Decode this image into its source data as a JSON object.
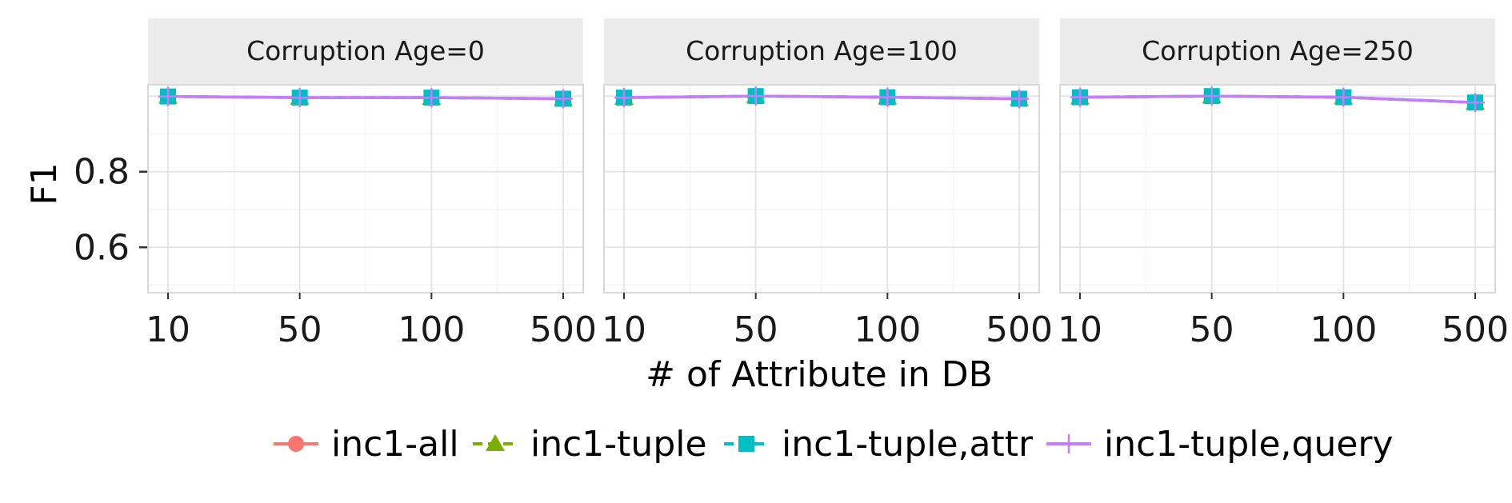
{
  "chart_data": {
    "type": "line",
    "ylabel": "F1",
    "xlabel": "# of Attribute in DB",
    "x_categories": [
      "10",
      "50",
      "100",
      "500"
    ],
    "y_ticks": [
      0.6,
      0.8
    ],
    "ylim": [
      0.48,
      1.03
    ],
    "grid": true,
    "legend_position": "bottom",
    "series_meta": [
      {
        "name": "inc1-all",
        "color": "#F8766D",
        "marker": "circle",
        "dash": "solid"
      },
      {
        "name": "inc1-tuple",
        "color": "#7CAE00",
        "marker": "triangle",
        "dash": "dashed"
      },
      {
        "name": "inc1-tuple,attr",
        "color": "#00BFC4",
        "marker": "square",
        "dash": "dashed"
      },
      {
        "name": "inc1-tuple,query",
        "color": "#C77CFF",
        "marker": "plus",
        "dash": "solid"
      }
    ],
    "panels": [
      {
        "title": "Corruption Age=0",
        "series": [
          {
            "name": "inc1-all",
            "values": [
              0.999,
              0.996,
              0.996,
              0.993
            ]
          },
          {
            "name": "inc1-tuple",
            "values": [
              0.999,
              0.996,
              0.996,
              0.993
            ]
          },
          {
            "name": "inc1-tuple,attr",
            "values": [
              0.999,
              0.996,
              0.996,
              0.993
            ]
          },
          {
            "name": "inc1-tuple,query",
            "values": [
              0.999,
              0.996,
              0.996,
              0.993
            ]
          }
        ]
      },
      {
        "title": "Corruption Age=100",
        "series": [
          {
            "name": "inc1-all",
            "values": [
              0.996,
              1.0,
              0.997,
              0.993
            ]
          },
          {
            "name": "inc1-tuple",
            "values": [
              0.996,
              1.0,
              0.997,
              0.993
            ]
          },
          {
            "name": "inc1-tuple,attr",
            "values": [
              0.996,
              1.0,
              0.997,
              0.993
            ]
          },
          {
            "name": "inc1-tuple,query",
            "values": [
              0.996,
              1.0,
              0.997,
              0.993
            ]
          }
        ]
      },
      {
        "title": "Corruption Age=250",
        "series": [
          {
            "name": "inc1-all",
            "values": [
              0.997,
              1.0,
              0.997,
              0.983
            ]
          },
          {
            "name": "inc1-tuple",
            "values": [
              0.997,
              1.0,
              0.997,
              0.983
            ]
          },
          {
            "name": "inc1-tuple,attr",
            "values": [
              0.997,
              1.0,
              0.997,
              0.983
            ]
          },
          {
            "name": "inc1-tuple,query",
            "values": [
              0.997,
              1.0,
              0.997,
              0.983
            ]
          }
        ]
      }
    ]
  }
}
